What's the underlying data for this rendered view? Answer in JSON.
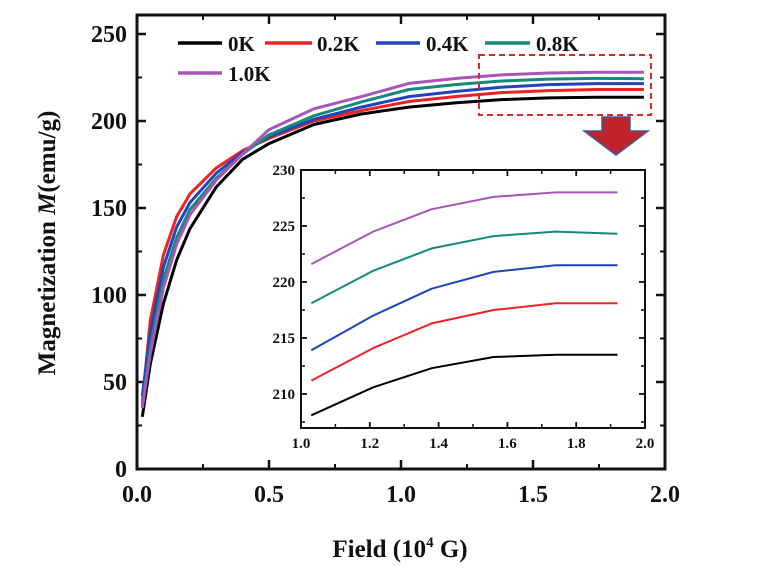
{
  "chart_data": [
    {
      "id": "main",
      "type": "line",
      "title": "",
      "xlabel_prefix": "Field (10",
      "xlabel_sup": "4",
      "xlabel_suffix": " G)",
      "ylabel_prefix": "Magnetization ",
      "ylabel_italic": "M",
      "ylabel_suffix": "(emu/g)",
      "xlim": [
        0.0,
        2.0
      ],
      "ylim": [
        0,
        250
      ],
      "xticks": [
        "0.0",
        "0.5",
        "1.0",
        "1.5",
        "2.0"
      ],
      "xtick_values": [
        0.0,
        0.5,
        1.0,
        1.5,
        2.0
      ],
      "yticks": [
        "0",
        "50",
        "100",
        "150",
        "200",
        "250"
      ],
      "ytick_values": [
        0,
        50,
        100,
        150,
        200,
        250
      ],
      "grid": false,
      "legend_position": "top",
      "x": [
        0.02,
        0.05,
        0.1,
        0.15,
        0.2,
        0.3,
        0.4,
        0.5,
        0.67,
        0.85,
        1.03,
        1.21,
        1.38,
        1.56,
        1.74,
        1.92
      ],
      "series": [
        {
          "name": "0K",
          "color": "#000000",
          "values": [
            30,
            60,
            95,
            120,
            138,
            162,
            178,
            187,
            198,
            204,
            208,
            210.5,
            212.3,
            213.3,
            213.6,
            213.6
          ]
        },
        {
          "name": "0.2K",
          "color": "#ee2222",
          "values": [
            38,
            85,
            123,
            145,
            158,
            173,
            183,
            190,
            200,
            206,
            211.2,
            214.1,
            216.3,
            217.5,
            218.1,
            218.1
          ]
        },
        {
          "name": "0.4K",
          "color": "#1f44bb",
          "values": [
            42,
            78,
            116,
            139,
            153,
            170,
            182,
            191,
            201,
            208,
            214,
            217,
            219.4,
            220.9,
            221.5,
            221.5
          ]
        },
        {
          "name": "0.8K",
          "color": "#148a7a",
          "values": [
            36,
            70,
            109,
            133,
            149,
            167,
            181,
            192,
            203,
            211,
            218.1,
            221,
            223,
            224.1,
            224.5,
            224.3
          ]
        },
        {
          "name": "1.0K",
          "color": "#a855b8",
          "values": [
            35,
            66,
            104,
            129,
            146,
            166,
            181,
            195,
            207,
            214,
            221.6,
            224.5,
            226.5,
            227.6,
            228,
            228
          ]
        }
      ]
    },
    {
      "id": "inset",
      "type": "line",
      "title": "",
      "xlim": [
        1.0,
        2.0
      ],
      "ylim": [
        207,
        230
      ],
      "xticks": [
        "1.0",
        "1.2",
        "1.4",
        "1.6",
        "1.8",
        "2.0"
      ],
      "xtick_values": [
        1.0,
        1.2,
        1.4,
        1.6,
        1.8,
        2.0
      ],
      "yticks": [
        "210",
        "215",
        "220",
        "225",
        "230"
      ],
      "ytick_values": [
        210,
        215,
        220,
        225,
        230
      ],
      "grid": false,
      "x": [
        1.03,
        1.21,
        1.38,
        1.56,
        1.74,
        1.92
      ],
      "series": [
        {
          "name": "0K",
          "color": "#000000",
          "values": [
            208.1,
            210.6,
            212.3,
            213.3,
            213.5,
            213.5
          ]
        },
        {
          "name": "0.2K",
          "color": "#ee2222",
          "values": [
            211.2,
            214.1,
            216.3,
            217.5,
            218.1,
            218.1
          ]
        },
        {
          "name": "0.4K",
          "color": "#1f44bb",
          "values": [
            213.9,
            217.0,
            219.4,
            220.9,
            221.5,
            221.5
          ]
        },
        {
          "name": "0.8K",
          "color": "#148a7a",
          "values": [
            218.1,
            221.0,
            223.0,
            224.1,
            224.5,
            224.3
          ]
        },
        {
          "name": "1.0K",
          "color": "#a855b8",
          "values": [
            221.6,
            224.5,
            226.5,
            227.6,
            228.0,
            228.0
          ]
        }
      ]
    }
  ],
  "annotation": {
    "zoom_box_color": "#d62828",
    "arrow_fill": "#c0242a",
    "arrow_edge": "#3a5aa8"
  }
}
